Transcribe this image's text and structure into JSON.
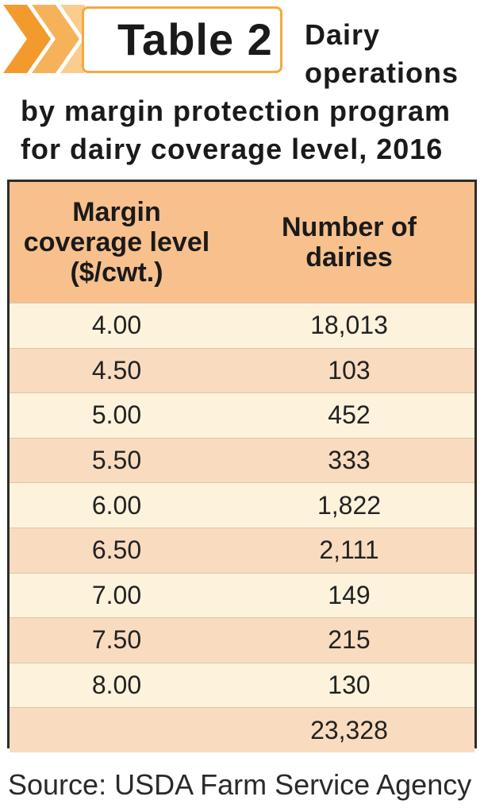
{
  "header": {
    "table_label": "Table 2",
    "title_lines": [
      "Dairy",
      "operations",
      "by margin protection program",
      "for dairy coverage level, 2016"
    ]
  },
  "colors": {
    "accent_orange": "#f4a93f",
    "header_fill": "#f7c08c",
    "row_light": "#fdf3dc",
    "row_dark": "#f9dcc0"
  },
  "table": {
    "columns": [
      {
        "lines": [
          "Margin",
          "coverage level",
          "($/cwt.)"
        ]
      },
      {
        "lines": [
          "Number of",
          "dairies"
        ]
      }
    ],
    "rows": [
      {
        "level": "4.00",
        "count": "18,013"
      },
      {
        "level": "4.50",
        "count": "103"
      },
      {
        "level": "5.00",
        "count": "452"
      },
      {
        "level": "5.50",
        "count": "333"
      },
      {
        "level": "6.00",
        "count": "1,822"
      },
      {
        "level": "6.50",
        "count": "2,111"
      },
      {
        "level": "7.00",
        "count": "149"
      },
      {
        "level": "7.50",
        "count": "215"
      },
      {
        "level": "8.00",
        "count": "130"
      },
      {
        "level": "",
        "count": "23,328"
      }
    ]
  },
  "source": "Source: USDA Farm Service Agency"
}
